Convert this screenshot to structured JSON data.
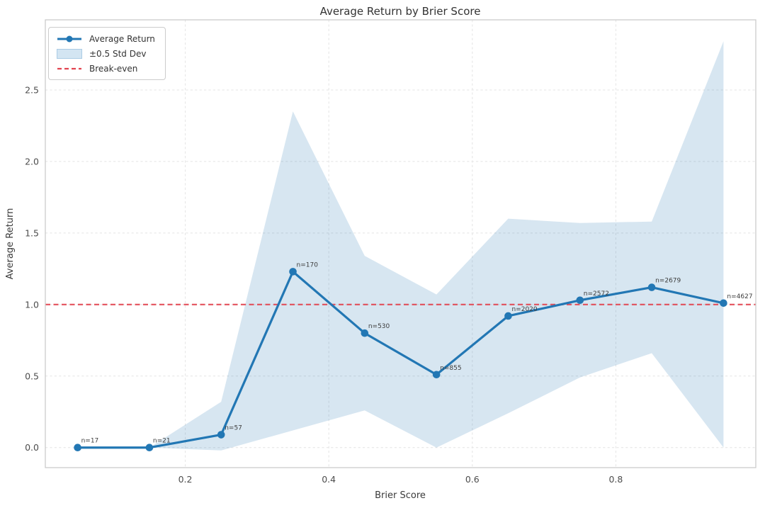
{
  "title": "Average Return by Brier Score",
  "xlabel": "Brier Score",
  "ylabel": "Average Return",
  "legend": {
    "items": [
      {
        "label": "Average Return",
        "type": "line-marker"
      },
      {
        "label": "±0.5 Std Dev",
        "type": "patch"
      },
      {
        "label": "Break-even",
        "type": "dashed-line"
      }
    ]
  },
  "colors": {
    "line": "#2277b4",
    "band": "#1f77b4",
    "band_opacity": 0.18,
    "band_legend": "#d3e5f2",
    "break_even": "#e2434f",
    "grid": "#e4e4e4",
    "spine": "#cbcbcb"
  },
  "chart_data": {
    "type": "line",
    "title": "Average Return by Brier Score",
    "xlabel": "Brier Score",
    "ylabel": "Average Return",
    "x": [
      0.05,
      0.15,
      0.25,
      0.35,
      0.45,
      0.55,
      0.65,
      0.75,
      0.85,
      0.95
    ],
    "series": [
      {
        "name": "Average Return",
        "values": [
          0.0,
          0.0,
          0.09,
          1.23,
          0.8,
          0.51,
          0.92,
          1.03,
          1.12,
          1.01
        ]
      },
      {
        "name": "±0.5 Std Dev upper",
        "values": [
          0.0,
          0.0,
          0.32,
          2.35,
          1.34,
          1.07,
          1.6,
          1.57,
          1.58,
          2.84
        ]
      },
      {
        "name": "±0.5 Std Dev lower",
        "values": [
          0.0,
          0.0,
          -0.02,
          0.12,
          0.26,
          0.0,
          0.24,
          0.49,
          0.66,
          0.0
        ]
      }
    ],
    "annotations": [
      "n=17",
      "n=21",
      "n=57",
      "n=170",
      "n=530",
      "n=855",
      "n=2020",
      "n=2572",
      "n=2679",
      "n=4627"
    ],
    "break_even": 1.0,
    "xticks": [
      0.2,
      0.4,
      0.6,
      0.8
    ],
    "yticks": [
      0.0,
      0.5,
      1.0,
      1.5,
      2.0,
      2.5
    ],
    "xlim": [
      0.005,
      0.995
    ],
    "ylim": [
      -0.14,
      2.99
    ],
    "grid": true,
    "legend_position": "upper left"
  }
}
